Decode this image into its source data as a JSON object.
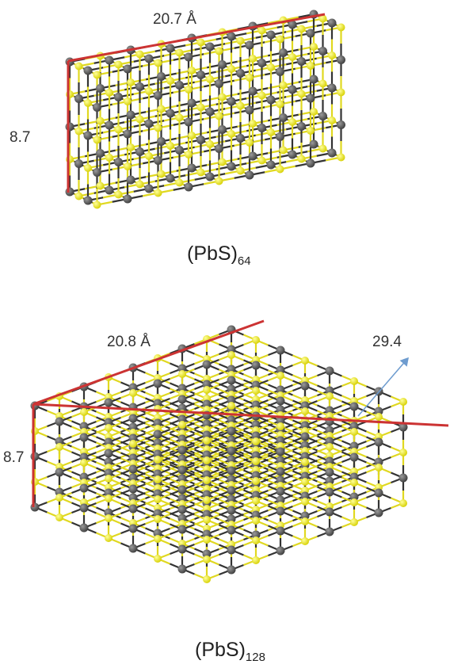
{
  "colors": {
    "lead_atom": "#4a4a4a",
    "sulfur_atom": "#eaea1c",
    "bond_dark": "#333333",
    "bond_yellow": "#e0d820",
    "dimension_line": "#cc3333",
    "arrow": "#6e9ccf"
  },
  "structures": [
    {
      "labels": {
        "length": "20.7 Å",
        "height": "8.7"
      },
      "caption": {
        "formula": "(PbS)",
        "subscript": "64"
      }
    },
    {
      "labels": {
        "length": "20.8 Å",
        "depth": "29.4",
        "height": "8.7"
      },
      "caption": {
        "formula": "(PbS)",
        "subscript": "128"
      }
    }
  ]
}
